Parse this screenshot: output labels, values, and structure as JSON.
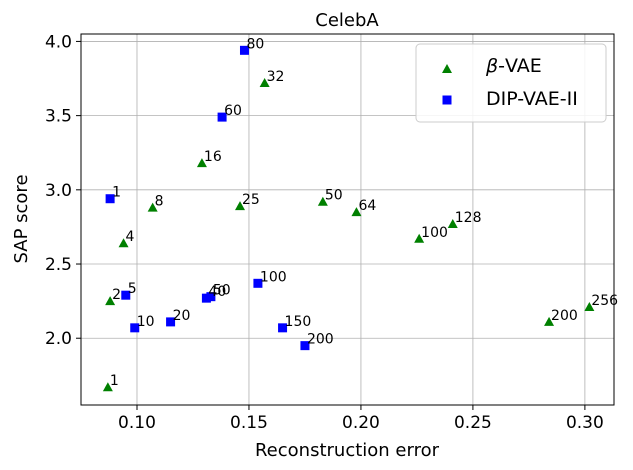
{
  "chart_data": {
    "type": "scatter",
    "title": "CelebA",
    "xlabel": "Reconstruction error",
    "ylabel": "SAP score",
    "xlim": [
      0.075,
      0.313
    ],
    "ylim": [
      1.55,
      4.05
    ],
    "xticks": [
      0.1,
      0.15,
      0.2,
      0.25,
      0.3
    ],
    "xtick_labels": [
      "0.10",
      "0.15",
      "0.20",
      "0.25",
      "0.30"
    ],
    "yticks": [
      2.0,
      2.5,
      3.0,
      3.5,
      4.0
    ],
    "ytick_labels": [
      "2.0",
      "2.5",
      "3.0",
      "3.5",
      "4.0"
    ],
    "grid": true,
    "legend_position": "top-right",
    "series": [
      {
        "name": "β-VAE",
        "legend_prefix": "β",
        "legend_suffix": "-VAE",
        "marker": "triangle",
        "color": "#008000",
        "points": [
          {
            "x": 0.087,
            "y": 1.67,
            "label": "1"
          },
          {
            "x": 0.088,
            "y": 2.25,
            "label": "2"
          },
          {
            "x": 0.094,
            "y": 2.64,
            "label": "4"
          },
          {
            "x": 0.107,
            "y": 2.88,
            "label": "8"
          },
          {
            "x": 0.129,
            "y": 3.18,
            "label": "16"
          },
          {
            "x": 0.146,
            "y": 2.89,
            "label": "25"
          },
          {
            "x": 0.157,
            "y": 3.72,
            "label": "32"
          },
          {
            "x": 0.183,
            "y": 2.92,
            "label": "50"
          },
          {
            "x": 0.198,
            "y": 2.85,
            "label": "64"
          },
          {
            "x": 0.226,
            "y": 2.67,
            "label": "100"
          },
          {
            "x": 0.241,
            "y": 2.77,
            "label": "128"
          },
          {
            "x": 0.284,
            "y": 2.11,
            "label": "200"
          },
          {
            "x": 0.302,
            "y": 2.21,
            "label": "256"
          }
        ]
      },
      {
        "name": "DIP-VAE-II",
        "legend_prefix": "",
        "legend_suffix": "DIP-VAE-II",
        "marker": "square",
        "color": "#0000ff",
        "points": [
          {
            "x": 0.088,
            "y": 2.94,
            "label": "1"
          },
          {
            "x": 0.095,
            "y": 2.29,
            "label": "5"
          },
          {
            "x": 0.099,
            "y": 2.07,
            "label": "10"
          },
          {
            "x": 0.115,
            "y": 2.11,
            "label": "20"
          },
          {
            "x": 0.131,
            "y": 2.27,
            "label": "40"
          },
          {
            "x": 0.133,
            "y": 2.28,
            "label": "50"
          },
          {
            "x": 0.138,
            "y": 3.49,
            "label": "60"
          },
          {
            "x": 0.148,
            "y": 3.94,
            "label": "80"
          },
          {
            "x": 0.154,
            "y": 2.37,
            "label": "100"
          },
          {
            "x": 0.165,
            "y": 2.07,
            "label": "150"
          },
          {
            "x": 0.175,
            "y": 1.95,
            "label": "200"
          }
        ]
      }
    ]
  }
}
